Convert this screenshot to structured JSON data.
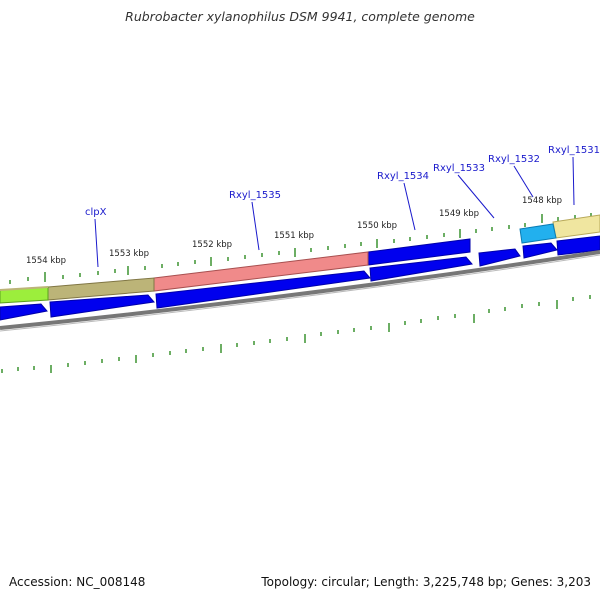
{
  "title": "Rubrobacter xylanophilus DSM 9941, complete genome",
  "accession": "Accession: NC_008148",
  "summary": "Topology: circular; Length: 3,225,748 bp; Genes: 3,203",
  "colors": {
    "backbone": "#777777",
    "cds": "#0000ee",
    "cds_outline": "#0000aa",
    "tick": "#2e8b22",
    "label": "#1a1acc"
  },
  "scale_labels": [
    {
      "kbp": 1548,
      "text": "1548 kbp"
    },
    {
      "kbp": 1549,
      "text": "1549 kbp"
    },
    {
      "kbp": 1550,
      "text": "1550 kbp"
    },
    {
      "kbp": 1551,
      "text": "1551 kbp"
    },
    {
      "kbp": 1552,
      "text": "1552 kbp"
    },
    {
      "kbp": 1553,
      "text": "1553 kbp"
    },
    {
      "kbp": 1554,
      "text": "1554 kbp"
    }
  ],
  "gene_labels": [
    {
      "text": "Rxyl_1531"
    },
    {
      "text": "Rxyl_1532"
    },
    {
      "text": "Rxyl_1533"
    },
    {
      "text": "Rxyl_1534"
    },
    {
      "text": "Rxyl_1535"
    },
    {
      "text": "clpX"
    }
  ],
  "feature_bars": [
    {
      "color": "#f0e6a0",
      "edge": "#b8a95a"
    },
    {
      "color": "#22b0ee",
      "edge": "#0a7db5"
    },
    {
      "color": "#0000ee",
      "edge": "#0000aa"
    },
    {
      "color": "#f08a8a",
      "edge": "#a85050"
    },
    {
      "color": "#bcb478",
      "edge": "#807644"
    },
    {
      "color": "#9cee3c",
      "edge": "#5aa01e"
    }
  ]
}
